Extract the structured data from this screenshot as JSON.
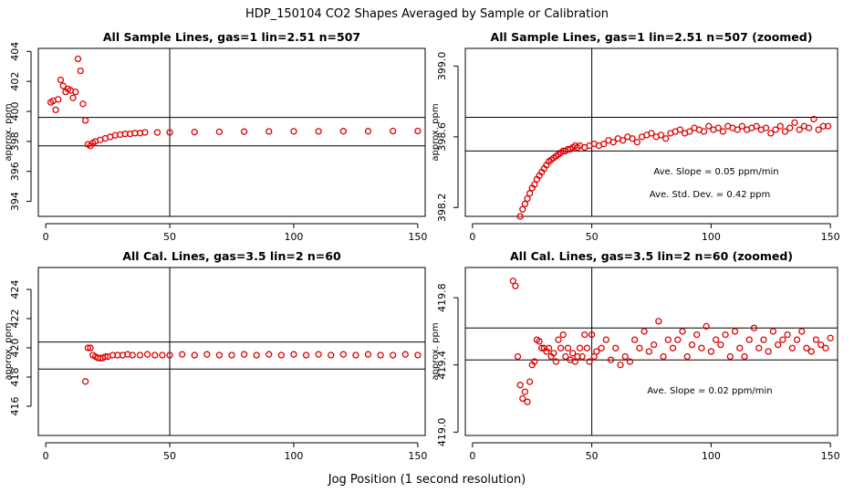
{
  "figure": {
    "title": "HDP_150104  CO2 Shapes Averaged by Sample or Calibration",
    "xlabel": "Jog Position (1 second resolution)"
  },
  "chart_data": [
    {
      "type": "scatter",
      "title": "All Sample Lines, gas=1 lin=2.51 n=507",
      "ylabel": "approx. ppm",
      "xlim": [
        -3,
        153
      ],
      "ylim": [
        393,
        404.2
      ],
      "xticks": [
        0,
        50,
        100,
        150
      ],
      "yticks": [
        394,
        396,
        398,
        400,
        402,
        404
      ],
      "hlines": [
        399.6,
        397.7
      ],
      "vline": 50,
      "annotations": [],
      "marker_color": "#e00000",
      "x": [
        2,
        3,
        4,
        5,
        6,
        7,
        8,
        9,
        10,
        11,
        12,
        13,
        14,
        15,
        16,
        17,
        18,
        19,
        20,
        22,
        24,
        26,
        28,
        30,
        32,
        34,
        36,
        38,
        40,
        45,
        50,
        60,
        70,
        80,
        90,
        100,
        110,
        120,
        130,
        140,
        150
      ],
      "y": [
        400.6,
        400.7,
        400.1,
        400.8,
        402.1,
        401.7,
        401.3,
        401.5,
        401.4,
        400.9,
        401.3,
        403.5,
        402.7,
        400.5,
        399.4,
        397.8,
        397.7,
        397.9,
        398.0,
        398.1,
        398.2,
        398.3,
        398.4,
        398.45,
        398.5,
        398.5,
        398.55,
        398.55,
        398.6,
        398.6,
        398.6,
        398.62,
        398.64,
        398.65,
        398.66,
        398.67,
        398.67,
        398.68,
        398.68,
        398.69,
        398.69
      ]
    },
    {
      "type": "scatter",
      "title": "All Sample Lines, gas=1 lin=2.51 n=507 (zoomed)",
      "ylabel": "approx. ppm",
      "xlim": [
        -3,
        153
      ],
      "ylim": [
        398.15,
        399.1
      ],
      "xticks": [
        0,
        50,
        100,
        150
      ],
      "yticks": [
        398.2,
        398.6,
        399.0
      ],
      "hlines": [
        398.71,
        398.52
      ],
      "vline": 50,
      "annotations": [
        "Ave. Slope =  0.05  ppm/min",
        "Ave. Std. Dev. =  0.42  ppm"
      ],
      "marker_color": "#e00000",
      "x": [
        20,
        21,
        22,
        23,
        24,
        25,
        26,
        27,
        28,
        29,
        30,
        31,
        32,
        33,
        34,
        35,
        36,
        37,
        38,
        39,
        40,
        41,
        42,
        43,
        44,
        45,
        47,
        49,
        51,
        53,
        55,
        57,
        59,
        61,
        63,
        65,
        67,
        69,
        71,
        73,
        75,
        77,
        79,
        81,
        83,
        85,
        87,
        89,
        91,
        93,
        95,
        97,
        99,
        101,
        103,
        105,
        107,
        109,
        111,
        113,
        115,
        117,
        119,
        121,
        123,
        125,
        127,
        129,
        131,
        133,
        135,
        137,
        139,
        141,
        143,
        145,
        147,
        149
      ],
      "y": [
        398.15,
        398.19,
        398.22,
        398.25,
        398.28,
        398.31,
        398.33,
        398.36,
        398.38,
        398.4,
        398.42,
        398.44,
        398.46,
        398.47,
        398.48,
        398.49,
        398.5,
        398.51,
        398.52,
        398.52,
        398.53,
        398.53,
        398.54,
        398.55,
        398.54,
        398.55,
        398.54,
        398.55,
        398.56,
        398.55,
        398.56,
        398.58,
        398.57,
        398.59,
        398.58,
        398.6,
        398.59,
        398.57,
        398.6,
        398.61,
        398.62,
        398.6,
        398.61,
        398.59,
        398.62,
        398.63,
        398.64,
        398.62,
        398.63,
        398.65,
        398.64,
        398.63,
        398.66,
        398.64,
        398.65,
        398.63,
        398.66,
        398.65,
        398.64,
        398.66,
        398.64,
        398.65,
        398.66,
        398.64,
        398.65,
        398.62,
        398.64,
        398.66,
        398.63,
        398.65,
        398.68,
        398.64,
        398.66,
        398.65,
        398.7,
        398.64,
        398.66,
        398.66
      ]
    },
    {
      "type": "scatter",
      "title": "All Cal. Lines, gas=3.5 lin=2 n=60",
      "ylabel": "approx. ppm",
      "xlim": [
        -3,
        153
      ],
      "ylim": [
        414,
        425.5
      ],
      "xticks": [
        0,
        50,
        100,
        150
      ],
      "yticks": [
        416,
        418,
        420,
        422,
        424
      ],
      "hlines": [
        420.4,
        418.55
      ],
      "vline": 50,
      "annotations": [],
      "marker_color": "#e00000",
      "x": [
        16,
        17,
        18,
        19,
        20,
        21,
        22,
        23,
        24,
        25,
        27,
        29,
        31,
        33,
        35,
        38,
        41,
        44,
        47,
        50,
        55,
        60,
        65,
        70,
        75,
        80,
        85,
        90,
        95,
        100,
        105,
        110,
        115,
        120,
        125,
        130,
        135,
        140,
        145,
        150
      ],
      "y": [
        417.7,
        420.0,
        420.0,
        419.5,
        419.4,
        419.3,
        419.3,
        419.3,
        419.4,
        419.4,
        419.5,
        419.5,
        419.5,
        419.55,
        419.5,
        419.5,
        419.55,
        419.5,
        419.5,
        419.5,
        419.55,
        419.5,
        419.55,
        419.5,
        419.5,
        419.55,
        419.5,
        419.55,
        419.5,
        419.55,
        419.5,
        419.55,
        419.5,
        419.55,
        419.5,
        419.55,
        419.5,
        419.5,
        419.55,
        419.5
      ]
    },
    {
      "type": "scatter",
      "title": "All Cal. Lines, gas=3.5 lin=2 n=60 (zoomed)",
      "ylabel": "approx. ppm",
      "xlim": [
        -3,
        153
      ],
      "ylim": [
        418.98,
        419.98
      ],
      "xticks": [
        0,
        50,
        100,
        150
      ],
      "yticks": [
        419.0,
        419.4,
        419.8
      ],
      "hlines": [
        419.62,
        419.43
      ],
      "vline": 50,
      "annotations": [
        "Ave. Slope =  0.02  ppm/min"
      ],
      "marker_color": "#e00000",
      "x": [
        17,
        18,
        19,
        20,
        21,
        22,
        23,
        24,
        25,
        26,
        27,
        28,
        29,
        30,
        31,
        32,
        33,
        34,
        35,
        36,
        37,
        38,
        39,
        40,
        41,
        42,
        43,
        44,
        45,
        46,
        47,
        48,
        49,
        50,
        51,
        52,
        54,
        56,
        58,
        60,
        62,
        64,
        66,
        68,
        70,
        72,
        74,
        76,
        78,
        80,
        82,
        84,
        86,
        88,
        90,
        92,
        94,
        96,
        98,
        100,
        102,
        104,
        106,
        108,
        110,
        112,
        114,
        116,
        118,
        120,
        122,
        124,
        126,
        128,
        130,
        132,
        134,
        136,
        138,
        140,
        142,
        144,
        146,
        148,
        150
      ],
      "y": [
        419.9,
        419.87,
        419.45,
        419.28,
        419.2,
        419.24,
        419.18,
        419.3,
        419.4,
        419.42,
        419.55,
        419.54,
        419.5,
        419.5,
        419.48,
        419.5,
        419.45,
        419.47,
        419.42,
        419.55,
        419.5,
        419.58,
        419.45,
        419.5,
        419.43,
        419.47,
        419.42,
        419.45,
        419.5,
        419.45,
        419.58,
        419.5,
        419.42,
        419.58,
        419.45,
        419.48,
        419.5,
        419.55,
        419.43,
        419.5,
        419.4,
        419.45,
        419.42,
        419.55,
        419.5,
        419.6,
        419.48,
        419.52,
        419.66,
        419.45,
        419.55,
        419.5,
        419.55,
        419.6,
        419.45,
        419.52,
        419.58,
        419.5,
        419.63,
        419.48,
        419.55,
        419.52,
        419.58,
        419.45,
        419.6,
        419.5,
        419.45,
        419.55,
        419.62,
        419.5,
        419.55,
        419.48,
        419.6,
        419.52,
        419.55,
        419.58,
        419.5,
        419.55,
        419.6,
        419.5,
        419.48,
        419.55,
        419.52,
        419.5,
        419.56
      ]
    }
  ]
}
